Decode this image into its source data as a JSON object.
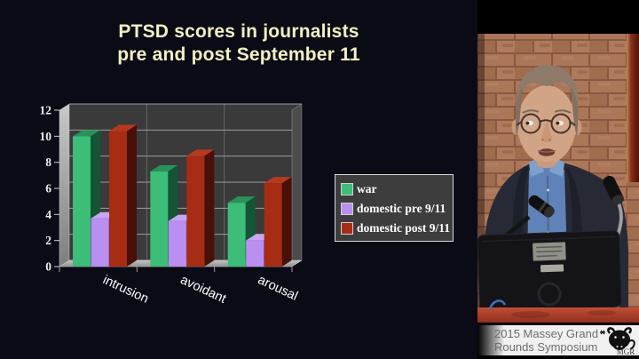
{
  "slide": {
    "title": {
      "line1": "PTSD scores in journalists",
      "line2": "pre and post September 11"
    }
  },
  "chart_data": {
    "type": "bar",
    "style": "3d-column",
    "title": "PTSD scores in journalists pre and post September 11",
    "categories": [
      "intrusion",
      "avoidant",
      "arousal"
    ],
    "series": [
      {
        "name": "war",
        "values": [
          10.0,
          7.3,
          4.9
        ],
        "color": "#3cbd78",
        "color_top": "#2a9158",
        "color_side": "#135534"
      },
      {
        "name": "domestic pre 9/11",
        "values": [
          3.7,
          3.5,
          2.0
        ],
        "color": "#b98ff2",
        "color_top": "#c7a6f6",
        "color_side": "#7a54b8"
      },
      {
        "name": "domestic post 9/11",
        "values": [
          10.4,
          8.5,
          6.4
        ],
        "color": "#a72c14",
        "color_top": "#b53a1d",
        "color_side": "#49100a"
      }
    ],
    "ylim": [
      0,
      12
    ],
    "ytick_step": 2,
    "yticks": [
      0,
      2,
      4,
      6,
      8,
      10,
      12
    ],
    "grid": true,
    "legend_position": "right-middle",
    "plot_bg": "#3a3a3a",
    "gridline_color": "#9c9c9c",
    "wall_color": "#b5b5b5",
    "label_color": "#ffffff"
  },
  "video": {
    "banner": {
      "line1": "2015 Massey Grand",
      "line2": "Rounds Symposium",
      "logo_text": "MGR"
    }
  }
}
